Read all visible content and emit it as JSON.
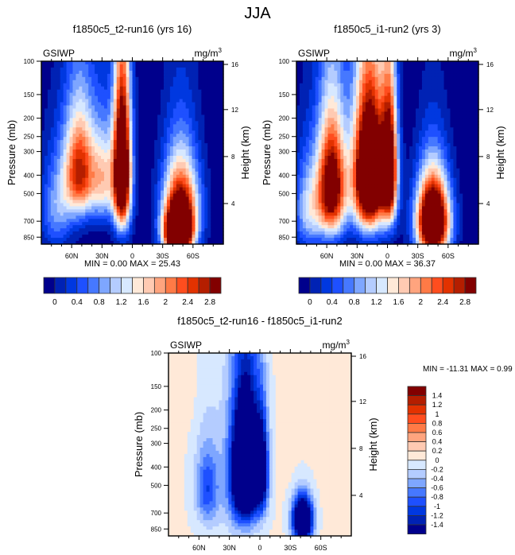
{
  "page": {
    "title": "JJA"
  },
  "colorbar_seq": {
    "colors": [
      "#00008c",
      "#0022b4",
      "#0038e0",
      "#1e50ff",
      "#4678ff",
      "#7ea6ff",
      "#b4ccff",
      "#d7e8ff",
      "#ffe9d8",
      "#ffcab2",
      "#ffa47e",
      "#ff7a46",
      "#ff4d1e",
      "#e23200",
      "#b41e00",
      "#820000"
    ],
    "tick_labels": [
      "0",
      "0.4",
      "0.8",
      "1.2",
      "1.6",
      "2",
      "2.4",
      "2.8"
    ],
    "levels": [
      0.2,
      0.4,
      0.6,
      0.8,
      1.0,
      1.2,
      1.4,
      1.6,
      1.8,
      2.0,
      2.2,
      2.4,
      2.6,
      2.8,
      3.0
    ]
  },
  "colorbar_diff": {
    "colors": [
      "#00008c",
      "#0022b4",
      "#0038e0",
      "#1e50ff",
      "#4678ff",
      "#7ea6ff",
      "#b4ccff",
      "#d7e8ff",
      "#ffe9d8",
      "#ffcab2",
      "#ffa47e",
      "#ff7a46",
      "#ff4d1e",
      "#e23200",
      "#b41e00",
      "#820000"
    ],
    "tick_labels": [
      "1.4",
      "1.2",
      "1",
      "0.8",
      "0.6",
      "0.4",
      "0.2",
      "0",
      "-0.2",
      "-0.4",
      "-0.6",
      "-0.8",
      "-1",
      "-1.2",
      "-1.4"
    ]
  },
  "chart_data": [
    {
      "type": "heatmap",
      "title": "f1850c5_t2-run16 (yrs 16)",
      "left_label": "GSIWP",
      "units": "mg/m3",
      "xlabel": "",
      "ylabel": "Pressure (mb)",
      "y2label": "Height (km)",
      "x_ticks": [
        "60N",
        "30N",
        "0",
        "30S",
        "60S"
      ],
      "x_tick_lat": [
        60,
        30,
        0,
        -30,
        -60
      ],
      "xlim": [
        90,
        -90
      ],
      "y_ticks": [
        100,
        150,
        200,
        250,
        300,
        400,
        500,
        700,
        850
      ],
      "ylim": [
        100,
        925
      ],
      "y2_ticks": [
        16,
        12,
        8,
        4
      ],
      "stats": "MIN =   0.00  MAX =  25.43",
      "min": 0.0,
      "max": 25.43,
      "blobs": [
        {
          "lat": 52,
          "p": 380,
          "wlat": 20,
          "wp": 320,
          "amp": 2.8
        },
        {
          "lat": 10,
          "p": 380,
          "wlat": 11,
          "wp": 430,
          "amp": 4.5
        },
        {
          "lat": 28,
          "p": 420,
          "wlat": 16,
          "wp": 300,
          "amp": 1.6
        },
        {
          "lat": -48,
          "p": 600,
          "wlat": 22,
          "wp": 420,
          "amp": 3.2
        },
        {
          "lat": -45,
          "p": 820,
          "wlat": 16,
          "wp": 260,
          "amp": 4.5
        },
        {
          "lat": 75,
          "p": 600,
          "wlat": 20,
          "wp": 420,
          "amp": 1.0
        }
      ]
    },
    {
      "type": "heatmap",
      "title": "f1850c5_i1-run2 (yrs 3)",
      "left_label": "GSIWP",
      "units": "mg/m3",
      "xlabel": "",
      "ylabel": "Pressure (mb)",
      "y2label": "Height (km)",
      "x_ticks": [
        "60N",
        "30N",
        "0",
        "30S",
        "60S"
      ],
      "x_tick_lat": [
        60,
        30,
        0,
        -30,
        -60
      ],
      "xlim": [
        90,
        -90
      ],
      "y_ticks": [
        100,
        150,
        200,
        250,
        300,
        400,
        500,
        700,
        850
      ],
      "ylim": [
        100,
        925
      ],
      "y2_ticks": [
        16,
        12,
        8,
        4
      ],
      "stats": "MIN =   0.00  MAX =  36.37",
      "min": 0.0,
      "max": 36.37,
      "blobs": [
        {
          "lat": 55,
          "p": 460,
          "wlat": 18,
          "wp": 420,
          "amp": 3.6
        },
        {
          "lat": 18,
          "p": 400,
          "wlat": 20,
          "wp": 420,
          "amp": 5.0
        },
        {
          "lat": -2,
          "p": 380,
          "wlat": 10,
          "wp": 380,
          "amp": 3.5
        },
        {
          "lat": -45,
          "p": 700,
          "wlat": 20,
          "wp": 420,
          "amp": 4.8
        },
        {
          "lat": 78,
          "p": 600,
          "wlat": 18,
          "wp": 420,
          "amp": 1.3
        }
      ]
    },
    {
      "type": "heatmap",
      "title": "f1850c5_t2-run16 - f1850c5_i1-run2",
      "left_label": "GSIWP",
      "units": "mg/m3",
      "xlabel": "",
      "ylabel": "Pressure (mb)",
      "y2label": "Height (km)",
      "x_ticks": [
        "60N",
        "30N",
        "0",
        "30S",
        "60S"
      ],
      "x_tick_lat": [
        60,
        30,
        0,
        -30,
        -60
      ],
      "xlim": [
        90,
        -90
      ],
      "y_ticks": [
        100,
        150,
        200,
        250,
        300,
        400,
        500,
        700,
        850
      ],
      "ylim": [
        100,
        925
      ],
      "y2_ticks": [
        16,
        12,
        8,
        4
      ],
      "stats": "MIN = -11.31  MAX =   0.99",
      "min": -11.31,
      "max": 0.99,
      "blobs": [
        {
          "lat": 14,
          "p": 420,
          "wlat": 17,
          "wp": 380,
          "amp": -3.5
        },
        {
          "lat": -2,
          "p": 420,
          "wlat": 8,
          "wp": 300,
          "amp": -1.5
        },
        {
          "lat": -42,
          "p": 760,
          "wlat": 12,
          "wp": 240,
          "amp": -3.2
        },
        {
          "lat": 52,
          "p": 520,
          "wlat": 14,
          "wp": 300,
          "amp": -0.9
        },
        {
          "lat": 30,
          "p": 500,
          "wlat": 40,
          "wp": 700,
          "amp": -0.25
        },
        {
          "lat": -28,
          "p": 200,
          "wlat": 8,
          "wp": 250,
          "amp": 0.12
        },
        {
          "lat": 70,
          "p": 130,
          "wlat": 10,
          "wp": 120,
          "amp": 0.1
        }
      ]
    }
  ]
}
